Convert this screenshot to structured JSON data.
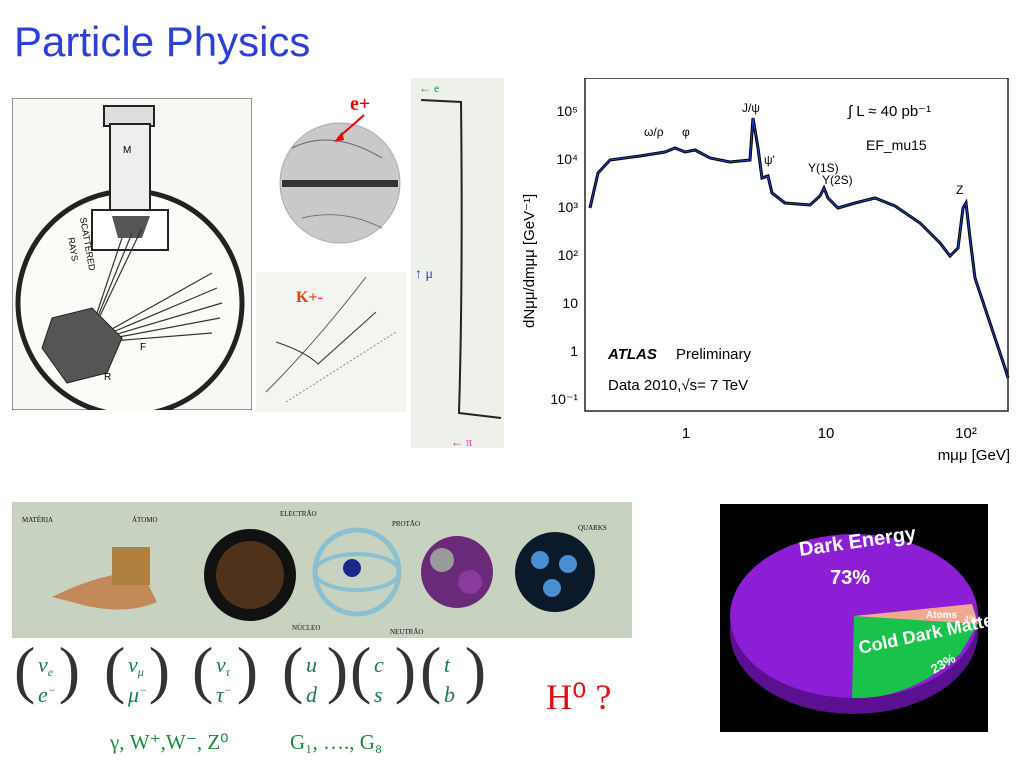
{
  "title": "Particle Physics",
  "photo_labels": {
    "positron": "e+",
    "kaon": "K+-",
    "track_top": "← e",
    "track_mid": "↑ μ",
    "track_bottom": "← π"
  },
  "diagram": {
    "m_label": "M",
    "scattered": "SCATTERED",
    "rays": "RAYS",
    "f_label": "F",
    "r_label": "R"
  },
  "atlas_plot": {
    "ylabel": "dNμμ/dmμμ [GeV⁻¹]",
    "xlabel": "mμμ [GeV]",
    "lumi": "∫ L ≈ 40 pb⁻¹",
    "trigger": "EF_mu15",
    "atlas": "ATLAS",
    "preliminary": "Preliminary",
    "data": "Data 2010,√s= 7 TeV",
    "y_ticks": [
      "10⁵",
      "10⁴",
      "10³",
      "10²",
      "10",
      "1",
      "10⁻¹"
    ],
    "x_ticks": [
      "1",
      "10",
      "10²"
    ],
    "peaks": [
      "ω/ρ",
      "φ",
      "J/ψ",
      "ψ'",
      "Υ(1S)",
      "Υ(2S)",
      "Z"
    ]
  },
  "matter_strip": {
    "labels": [
      "MATÉRIA",
      "ÁTOMO",
      "ELECTRÃO",
      "PROTÃO",
      "QUARKS",
      "NÚCLEO",
      "NEUTRÃO"
    ]
  },
  "pie": {
    "slices": [
      {
        "label": "Dark Energy",
        "value": "73%",
        "color": "#8c1fd6"
      },
      {
        "label": "Cold Dark Matter",
        "value": "23%",
        "color": "#19c24a"
      },
      {
        "label": "Atoms",
        "value": "4%",
        "color": "#f0a890"
      }
    ]
  },
  "particles": {
    "leptons": [
      {
        "top": "ν",
        "top_sub": "e",
        "bot": "e",
        "bot_sup": "−"
      },
      {
        "top": "ν",
        "top_sub": "μ",
        "bot": "μ",
        "bot_sup": "−"
      },
      {
        "top": "ν",
        "top_sub": "τ",
        "bot": "τ",
        "bot_sup": "−"
      }
    ],
    "quarks": [
      {
        "top": "u",
        "bot": "d"
      },
      {
        "top": "c",
        "bot": "s"
      },
      {
        "top": "t",
        "bot": "b"
      }
    ],
    "bosons": "γ, W⁺,W⁻, Z⁰",
    "gluons": "G₁, …., G₈",
    "higgs": "H⁰ ?"
  }
}
